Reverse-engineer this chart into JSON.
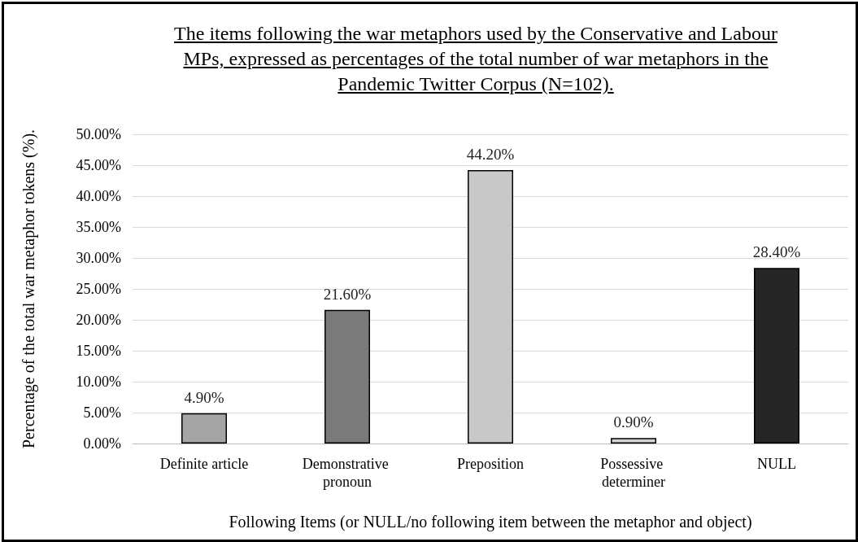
{
  "chart_data": {
    "type": "bar",
    "title": "The items following the war metaphors used by the Conservative and Labour MPs, expressed as percentages of the total number of war metaphors in the Pandemic Twitter Corpus (N=102).",
    "xlabel": "Following Items (or NULL/no following item between the metaphor and object)",
    "ylabel": "Percentage of the total war metaphor tokens (%).",
    "categories": [
      "Definite article",
      "Demonstrative pronoun",
      "Preposition",
      "Possessive determiner",
      "NULL"
    ],
    "values": [
      4.9,
      21.6,
      44.2,
      0.9,
      28.4
    ],
    "colors": [
      "#a5a5a5",
      "#7a7a7a",
      "#c8c8c8",
      "#d4d4d4",
      "#262626"
    ],
    "value_labels": [
      "4.90%",
      "21.60%",
      "44.20%",
      "0.90%",
      "28.40%"
    ],
    "ylim": [
      0,
      50
    ],
    "yticks": [
      {
        "value": 0,
        "label": "0.00%"
      },
      {
        "value": 5,
        "label": "5.00%"
      },
      {
        "value": 10,
        "label": "10.00%"
      },
      {
        "value": 15,
        "label": "15.00%"
      },
      {
        "value": 20,
        "label": "20.00%"
      },
      {
        "value": 25,
        "label": "25.00%"
      },
      {
        "value": 30,
        "label": "30.00%"
      },
      {
        "value": 35,
        "label": "35.00%"
      },
      {
        "value": 40,
        "label": "40.00%"
      },
      {
        "value": 45,
        "label": "45.00%"
      },
      {
        "value": 50,
        "label": "50.00%"
      }
    ],
    "grid": "y"
  }
}
